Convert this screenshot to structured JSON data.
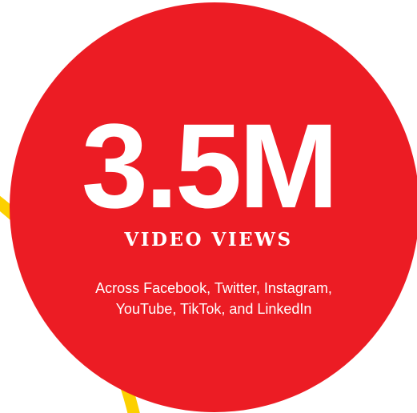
{
  "stat": {
    "value": "3.5M",
    "label": "VIDEO VIEWS",
    "description": "Across Facebook, Twitter, Instagram, YouTube, TikTok, and LinkedIn"
  },
  "colors": {
    "circle": "#ec1c24",
    "arc": "#fcd000",
    "text": "#ffffff"
  }
}
